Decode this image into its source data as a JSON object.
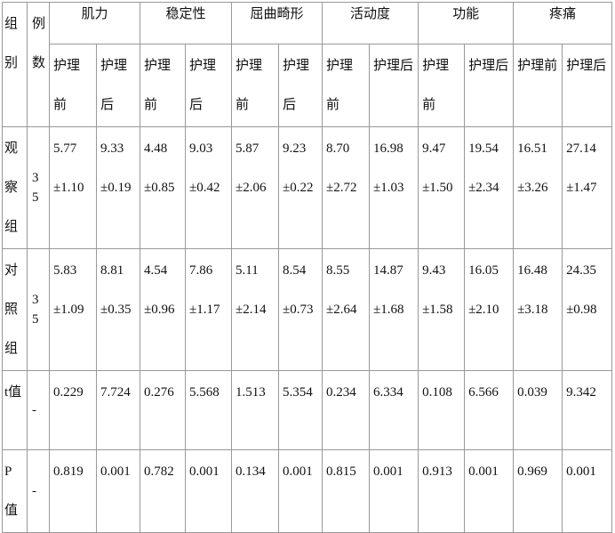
{
  "table": {
    "header": {
      "group": "组别",
      "count": "例数",
      "columns": [
        {
          "name": "肌力",
          "sub": [
            "护理前",
            "护理后"
          ]
        },
        {
          "name": "稳定性",
          "sub": [
            "护理前",
            "护理后"
          ]
        },
        {
          "name": "屈曲畸形",
          "sub": [
            "护理前",
            "护理后"
          ]
        },
        {
          "name": "活动度",
          "sub": [
            "护理前",
            "护理后"
          ]
        },
        {
          "name": "功能",
          "sub": [
            "护理前",
            "护理后"
          ]
        },
        {
          "name": "疼痛",
          "sub": [
            "护理前",
            "护理后"
          ]
        }
      ]
    },
    "rows": [
      {
        "group": "观察组",
        "count": "35",
        "cells": [
          "5.77±1.10",
          "9.33±0.19",
          "4.48±0.85",
          "9.03±0.42",
          "5.87±2.06",
          "9.23±0.22",
          "8.70±2.72",
          "16.98±1.03",
          "9.47±1.50",
          "19.54±2.34",
          "16.51±3.26",
          "27.14±1.47"
        ]
      },
      {
        "group": "对照组",
        "count": "35",
        "cells": [
          "5.83±1.09",
          "8.81±0.35",
          "4.54±0.96",
          "7.86±1.17",
          "5.11±2.14",
          "8.54±0.73",
          "8.55±2.64",
          "14.87±1.68",
          "9.43±1.58",
          "16.05±2.10",
          "16.48±3.18",
          "24.35±0.98"
        ]
      },
      {
        "group": "t值",
        "count": "-",
        "cells": [
          "0.229",
          "7.724",
          "0.276",
          "5.568",
          "1.513",
          "5.354",
          "0.234",
          "6.334",
          "0.108",
          "6.566",
          "0.039",
          "9.342"
        ]
      },
      {
        "group": "P值",
        "count": "-",
        "cells": [
          "0.819",
          "0.001",
          "0.782",
          "0.001",
          "0.134",
          "0.001",
          "0.815",
          "0.001",
          "0.913",
          "0.001",
          "0.969",
          "0.001"
        ]
      }
    ]
  }
}
